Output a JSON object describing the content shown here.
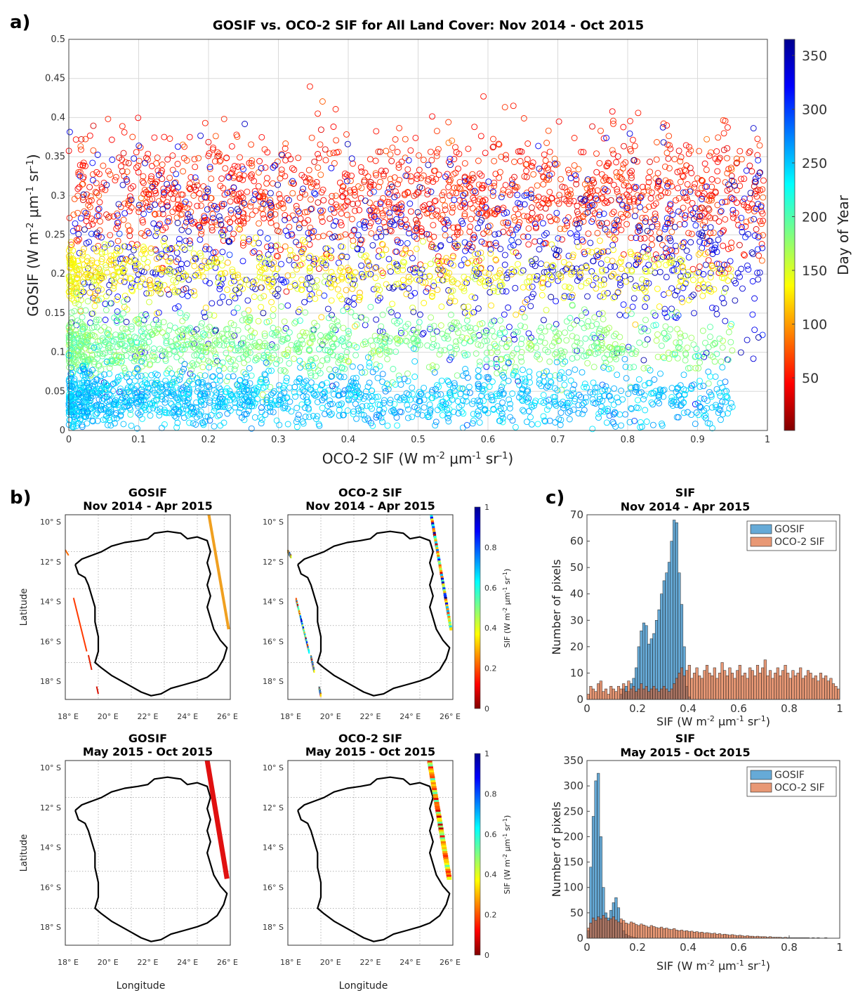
{
  "panels": {
    "a": "a)",
    "b": "b)",
    "c": "c)"
  },
  "chart_data": [
    {
      "id": "scatter",
      "type": "scatter",
      "title": "GOSIF vs. OCO-2 SIF for All Land Cover: Nov 2014 - Oct 2015",
      "xlabel": "OCO-2 SIF (W m-2 μm-1 sr-1)",
      "ylabel": "GOSIF (W m-2 μm-1 sr-1)",
      "xlim": [
        0,
        1
      ],
      "ylim": [
        0,
        0.5
      ],
      "xticks": [
        "0",
        "0.1",
        "0.2",
        "0.3",
        "0.4",
        "0.5",
        "0.6",
        "0.7",
        "0.8",
        "0.9",
        "1"
      ],
      "yticks": [
        "0",
        "0.05",
        "0.1",
        "0.15",
        "0.2",
        "0.25",
        "0.3",
        "0.35",
        "0.4",
        "0.45",
        "0.5"
      ],
      "grid": true,
      "colorbar": {
        "label": "Day of Year",
        "range": [
          1,
          365
        ],
        "ticks": [
          "50",
          "100",
          "150",
          "200",
          "250",
          "300",
          "350"
        ],
        "colormap": "jet-reversed"
      },
      "clusters": [
        {
          "name": "days ~40-80 (red/orange)",
          "gosif_center": 0.3,
          "gosif_spread": 0.04,
          "doy": 55
        },
        {
          "name": "days ~310-360 (blue)",
          "gosif_center": 0.22,
          "gosif_spread": 0.06,
          "doy": 330
        },
        {
          "name": "days ~120-160 (yellow)",
          "gosif_center": 0.2,
          "gosif_spread": 0.02,
          "doy": 135
        },
        {
          "name": "days ~180-210 (green)",
          "gosif_center": 0.11,
          "gosif_spread": 0.02,
          "doy": 185
        },
        {
          "name": "days ~230-280 (cyan)",
          "gosif_center": 0.04,
          "gosif_spread": 0.02,
          "doy": 250
        }
      ]
    },
    {
      "id": "map-gosif-1",
      "type": "map",
      "title_line1": "GOSIF",
      "title_line2": "Nov 2014 - Apr 2015",
      "ylabel": "Latitude"
    },
    {
      "id": "map-oco2-1",
      "type": "map",
      "title_line1": "OCO-2 SIF",
      "title_line2": "Nov 2014 - Apr 2015"
    },
    {
      "id": "map-gosif-2",
      "type": "map",
      "title_line1": "GOSIF",
      "title_line2": "May 2015 - Oct 2015",
      "ylabel": "Latitude",
      "xlabel": "Longitude"
    },
    {
      "id": "map-oco2-2",
      "type": "map",
      "title_line1": "OCO-2 SIF",
      "title_line2": "May 2015 - Oct 2015",
      "xlabel": "Longitude"
    },
    {
      "id": "hist-1",
      "type": "bar",
      "title_line1": "SIF",
      "title_line2": "Nov 2014 - Apr 2015",
      "xlabel": "SIF (W m-2 μm-1 sr-1)",
      "ylabel": "Number of pixels",
      "xlim": [
        0,
        1
      ],
      "ylim": [
        0,
        70
      ],
      "xticks": [
        "0",
        "0.2",
        "0.4",
        "0.6",
        "0.8",
        "1"
      ],
      "yticks": [
        "0",
        "10",
        "20",
        "30",
        "40",
        "50",
        "60",
        "70"
      ],
      "bin_width": 0.01,
      "series": [
        {
          "name": "GOSIF",
          "color": "#0072bd",
          "bin_start": 0.13,
          "values": [
            2,
            4,
            5,
            3,
            6,
            8,
            12,
            20,
            26,
            29,
            28,
            21,
            23,
            25,
            30,
            34,
            40,
            45,
            48,
            52,
            60,
            68,
            67,
            48,
            36,
            20,
            5,
            1
          ]
        },
        {
          "name": "OCO-2 SIF",
          "color": "#d95319",
          "bin_start": 0.0,
          "values": [
            2,
            5,
            4,
            3,
            6,
            7,
            3,
            4,
            2,
            5,
            4,
            3,
            5,
            4,
            6,
            3,
            7,
            4,
            5,
            3,
            4,
            6,
            4,
            5,
            3,
            4,
            5,
            4,
            3,
            4,
            5,
            4,
            3,
            4,
            6,
            8,
            10,
            12,
            9,
            11,
            13,
            8,
            10,
            12,
            9,
            8,
            11,
            13,
            10,
            9,
            12,
            8,
            10,
            14,
            11,
            9,
            12,
            10,
            8,
            11,
            13,
            9,
            10,
            8,
            12,
            11,
            9,
            13,
            10,
            12,
            15,
            9,
            11,
            8,
            10,
            12,
            9,
            11,
            13,
            10,
            8,
            11,
            9,
            10,
            12,
            8,
            9,
            11,
            10,
            8,
            9,
            7,
            10,
            8,
            9,
            7,
            8,
            6,
            5,
            4
          ]
        }
      ],
      "legend": "top-right"
    },
    {
      "id": "hist-2",
      "type": "bar",
      "title_line1": "SIF",
      "title_line2": "May 2015 - Oct 2015",
      "xlabel": "SIF (W m-2 μm-1 sr-1)",
      "ylabel": "Number of pixels",
      "xlim": [
        0,
        1
      ],
      "ylim": [
        0,
        350
      ],
      "xticks": [
        "0",
        "0.2",
        "0.4",
        "0.6",
        "0.8",
        "1"
      ],
      "yticks": [
        "0",
        "50",
        "100",
        "150",
        "200",
        "250",
        "300",
        "350"
      ],
      "bin_width": 0.01,
      "series": [
        {
          "name": "GOSIF",
          "color": "#0072bd",
          "bin_start": 0.0,
          "values": [
            15,
            140,
            240,
            310,
            325,
            200,
            100,
            50,
            40,
            55,
            70,
            80,
            60,
            30,
            15,
            8,
            5,
            3,
            2,
            1
          ]
        },
        {
          "name": "OCO-2 SIF",
          "color": "#d95319",
          "bin_start": 0.0,
          "values": [
            20,
            30,
            40,
            35,
            42,
            38,
            45,
            40,
            35,
            38,
            42,
            36,
            32,
            38,
            35,
            30,
            28,
            32,
            30,
            27,
            25,
            28,
            26,
            24,
            22,
            25,
            23,
            21,
            20,
            22,
            19,
            20,
            18,
            17,
            19,
            16,
            15,
            16,
            14,
            15,
            13,
            14,
            12,
            13,
            11,
            12,
            10,
            11,
            10,
            9,
            10,
            8,
            9,
            7,
            8,
            7,
            6,
            7,
            6,
            5,
            6,
            5,
            4,
            5,
            4,
            4,
            3,
            4,
            3,
            3,
            3,
            2,
            3,
            2,
            2,
            2,
            2,
            1,
            2,
            1,
            1,
            1,
            1,
            1,
            1,
            1,
            1,
            1,
            0,
            1,
            0,
            1,
            0,
            0,
            1,
            0,
            0,
            0,
            0,
            0
          ]
        }
      ],
      "legend": "top-right"
    }
  ],
  "map_axes": {
    "lat_ticks": [
      "10° S",
      "12° S",
      "14° S",
      "16° S",
      "18° S"
    ],
    "lon_ticks": [
      "18° E",
      "20° E",
      "22° E",
      "24° E",
      "26° E"
    ],
    "colorbar_label": "SIF (W m-2 μm-1 sr-1)",
    "colorbar_ticks": [
      "0",
      "0.2",
      "0.4",
      "0.6",
      "0.8",
      "1"
    ]
  }
}
